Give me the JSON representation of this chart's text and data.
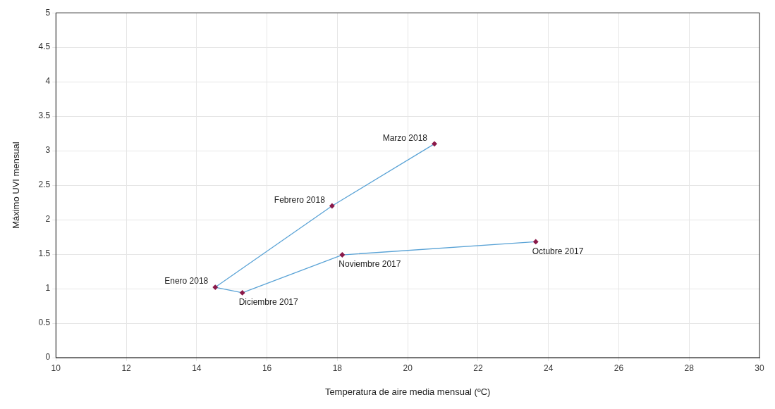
{
  "chart_data": {
    "type": "line",
    "xlabel": "Temperatura de aire media mensual (ºC)",
    "ylabel": "Máximo UVI mensual",
    "xlim": [
      10,
      30
    ],
    "xticks": [
      10,
      12,
      14,
      16,
      18,
      20,
      22,
      24,
      26,
      28,
      30
    ],
    "ylim": [
      0,
      5
    ],
    "yticks": [
      0,
      0.5,
      1,
      1.5,
      2,
      2.5,
      3,
      3.5,
      4,
      4.5,
      5
    ],
    "grid": true,
    "legend": false,
    "marker": "diamond",
    "line_style": "solid",
    "series": [
      {
        "color": "#5aa3d6",
        "colors": [
          "#8b1a4a",
          "#8b1a4a",
          "#8b1a4a",
          "#8b1a4a",
          "#8b1a4a",
          "#8b1a4a"
        ],
        "x": [
          23.64,
          18.14,
          15.3,
          14.53,
          17.85,
          20.76
        ],
        "values": [
          1.68,
          1.49,
          0.94,
          1.02,
          2.2,
          3.1
        ]
      }
    ],
    "annotations": [
      {
        "text": "Octubre 2017",
        "x": 23.64,
        "y": 1.68
      },
      {
        "text": "Noviembre 2017",
        "x": 18.14,
        "y": 1.49
      },
      {
        "text": "Diciembre 2017",
        "x": 15.3,
        "y": 0.94
      },
      {
        "text": "Enero 2018",
        "x": 14.53,
        "y": 1.02
      },
      {
        "text": "Febrero 2018",
        "x": 17.85,
        "y": 2.2
      },
      {
        "text": "Marzo 2018",
        "x": 20.76,
        "y": 3.1
      }
    ]
  }
}
